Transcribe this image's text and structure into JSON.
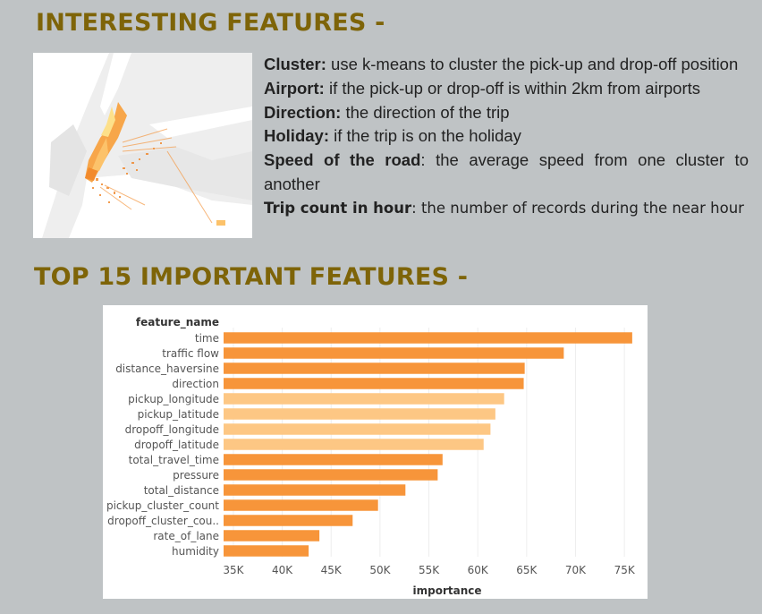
{
  "headings": {
    "interesting": "INTERESTING FEATURES -",
    "top": "TOP 15 IMPORTANT FEATURES -"
  },
  "features": [
    {
      "term": "Cluster:",
      "desc": " use k-means to cluster the pick-up and drop-off position"
    },
    {
      "term": "Airport:",
      "desc": " if the pick-up or drop-off is within 2km from airports"
    },
    {
      "term": "Direction:",
      "desc": " the direction of the trip"
    },
    {
      "term": "Holiday:",
      "desc": " if the trip is on the holiday"
    },
    {
      "term": "Speed of the road",
      "desc": ": the average speed from one cluster to another"
    },
    {
      "term": "Trip count in hour",
      "desc": ": the number of records during the near hour"
    }
  ],
  "colors": {
    "bar_dark": "#f7953a",
    "bar_light": "#fdc784",
    "heading": "#7e6408",
    "background": "#bfc3c5"
  },
  "chart_data": {
    "type": "bar",
    "orientation": "horizontal",
    "ylabel": "feature_name",
    "xlabel": "importance",
    "xlim": [
      34000,
      77000
    ],
    "xticks": [
      35000,
      40000,
      45000,
      50000,
      55000,
      60000,
      65000,
      70000,
      75000
    ],
    "xtick_labels": [
      "35K",
      "40K",
      "45K",
      "50K",
      "55K",
      "60K",
      "65K",
      "70K",
      "75K"
    ],
    "grid": "vertical",
    "categories": [
      "time",
      "traffic flow",
      "distance_haversine",
      "direction",
      "pickup_longitude",
      "pickup_latitude",
      "dropoff_longitude",
      "dropoff_latitude",
      "total_travel_time",
      "pressure",
      "total_distance",
      "pickup_cluster_count",
      "dropoff_cluster_cou..",
      "rate_of_lane",
      "humidity"
    ],
    "values": [
      75800,
      68800,
      64800,
      64700,
      62700,
      61800,
      61300,
      60600,
      56400,
      55900,
      52600,
      49800,
      47200,
      43800,
      42700
    ],
    "shade": [
      "dark",
      "dark",
      "dark",
      "dark",
      "light",
      "light",
      "light",
      "light",
      "dark",
      "dark",
      "dark",
      "dark",
      "dark",
      "dark",
      "dark"
    ]
  }
}
